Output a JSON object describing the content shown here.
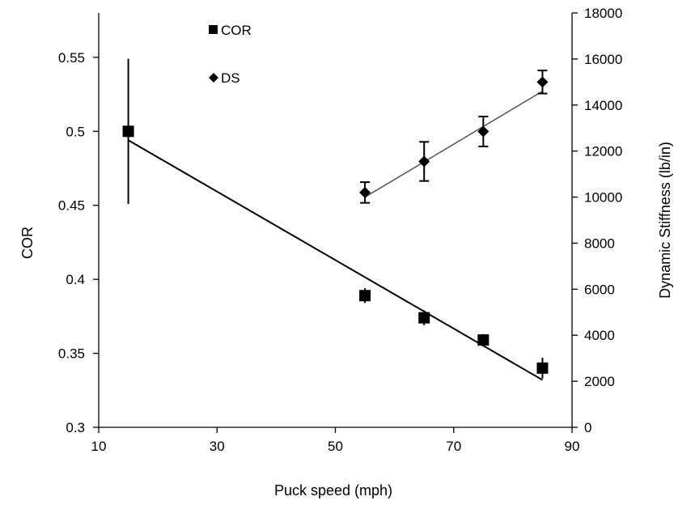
{
  "chart_data": {
    "type": "scatter",
    "title": "",
    "xlabel": "Puck speed (mph)",
    "ylabel": "COR",
    "y2label": "Dynamic Stiffness (lb/in)",
    "xlim": [
      10,
      90
    ],
    "ylim": [
      0.3,
      0.58
    ],
    "y2lim": [
      0,
      18000
    ],
    "x_ticks": [
      10,
      30,
      50,
      70,
      90
    ],
    "y_ticks": [
      0.3,
      0.35,
      0.4,
      0.45,
      0.5,
      0.55
    ],
    "y2_ticks": [
      0,
      2000,
      4000,
      6000,
      8000,
      10000,
      12000,
      14000,
      16000,
      18000
    ],
    "grid": false,
    "legend_position": "top-center",
    "series": [
      {
        "name": "COR",
        "axis": "left",
        "marker": "square",
        "x": [
          15,
          55,
          65,
          75,
          85
        ],
        "y": [
          0.5,
          0.389,
          0.374,
          0.359,
          0.34
        ],
        "err": [
          0.049,
          0.005,
          0.005,
          0.004,
          0.007
        ],
        "trendline": {
          "x": [
            15,
            85
          ],
          "y": [
            0.494,
            0.332
          ]
        }
      },
      {
        "name": "DS",
        "axis": "right",
        "marker": "diamond",
        "x": [
          55,
          65,
          75,
          85
        ],
        "y": [
          10200,
          11550,
          12850,
          15000
        ],
        "err": [
          450,
          850,
          650,
          500
        ],
        "trendline": {
          "x": [
            55,
            85
          ],
          "y": [
            10000,
            14600
          ]
        }
      }
    ]
  }
}
